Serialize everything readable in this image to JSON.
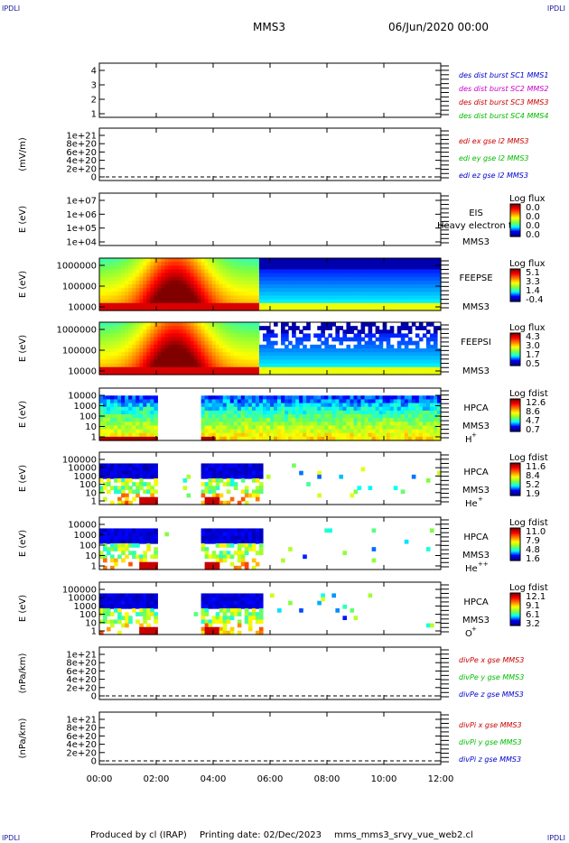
{
  "corner_label": "IPDLI",
  "header": {
    "mission": "MMS3",
    "datetime": "06/Jun/2020 00:00"
  },
  "footer": {
    "produced": "Produced by cl (IRAP)",
    "printing": "Printing date: 02/Dec/2023",
    "script": "mms_mms3_srvy_vue_web2.cl"
  },
  "time_axis": {
    "ticks": [
      "00:00",
      "02:00",
      "04:00",
      "06:00",
      "08:00",
      "10:00",
      "12:00"
    ],
    "start_hours": 0,
    "end_hours": 12
  },
  "colors": {
    "spectrogram_scale": [
      "#000080",
      "#0000ff",
      "#00ffff",
      "#80ff40",
      "#ffff00",
      "#ff8000",
      "#ff0000",
      "#800000"
    ]
  },
  "chart_data": [
    {
      "id": "p1",
      "type": "line",
      "ylabel": "",
      "yticks": [
        "4",
        "3",
        "2",
        "1"
      ],
      "ylim": [
        0.5,
        4.5
      ],
      "legend": [
        {
          "text": "des dist burst SC1 MMS1",
          "color": "#0000cc"
        },
        {
          "text": "des dist burst SC2 MMS2",
          "color": "#cc00cc"
        },
        {
          "text": "des dist burst SC3 MMS3",
          "color": "#cc0000"
        },
        {
          "text": "des dist burst SC4 MMS4",
          "color": "#00bb00"
        }
      ]
    },
    {
      "id": "p2",
      "type": "line",
      "ylabel": "(mV/m)",
      "yticks": [
        "1e+21",
        "8e+20",
        "6e+20",
        "4e+20",
        "2e+20",
        "0"
      ],
      "ylim": [
        0,
        1e+21
      ],
      "zero_line": true,
      "legend": [
        {
          "text": "edi ex gse l2 MMS3",
          "color": "#cc0000"
        },
        {
          "text": "edi ey gse l2 MMS3",
          "color": "#00bb00"
        },
        {
          "text": "edi ez gse l2 MMS3",
          "color": "#0000cc"
        }
      ]
    },
    {
      "id": "p3",
      "type": "heatmap",
      "ylabel": "E (eV)",
      "yticks": [
        "1e+07",
        "1e+06",
        "1e+05",
        "1e+04"
      ],
      "ylim": [
        10000.0,
        10000000.0
      ],
      "log": true,
      "instrument": [
        "EIS",
        "MMS3"
      ],
      "overlay_text": "Heavy electron to",
      "cbar_title": "Log flux",
      "cbar_ticks": [
        "0.0",
        "0.0",
        "0.0",
        "0.0"
      ],
      "data_extent": "none"
    },
    {
      "id": "p4",
      "type": "heatmap",
      "ylabel": "E (eV)",
      "yticks": [
        "1000000",
        "100000",
        "10000"
      ],
      "ylim": [
        10000.0,
        1000000.0
      ],
      "log": true,
      "instrument": [
        "FEEPSE",
        "MMS3"
      ],
      "cbar_title": "Log flux",
      "cbar_ticks": [
        "5.1",
        "3.3",
        "1.4",
        "-0.4"
      ],
      "data_extent": "full"
    },
    {
      "id": "p5",
      "type": "heatmap",
      "ylabel": "E (eV)",
      "yticks": [
        "1000000",
        "100000",
        "10000"
      ],
      "ylim": [
        10000.0,
        1000000.0
      ],
      "log": true,
      "instrument": [
        "FEEPSI",
        "MMS3"
      ],
      "cbar_title": "Log flux",
      "cbar_ticks": [
        "4.3",
        "3.0",
        "1.7",
        "0.5"
      ],
      "data_extent": "full"
    },
    {
      "id": "p6",
      "type": "heatmap",
      "ylabel": "E (eV)",
      "yticks": [
        "10000",
        "1000",
        "100",
        "10",
        "1"
      ],
      "ylim": [
        1,
        30000
      ],
      "log": true,
      "instrument": [
        "HPCA",
        "MMS3"
      ],
      "species": "H",
      "species_sup": "+",
      "cbar_title": "Log fdist",
      "cbar_ticks": [
        "12.6",
        "8.6",
        "4.7",
        "0.7"
      ],
      "data_extent": "gap"
    },
    {
      "id": "p7",
      "type": "heatmap",
      "ylabel": "E (eV)",
      "yticks": [
        "100000",
        "10000",
        "1000",
        "100",
        "10",
        "1"
      ],
      "ylim": [
        1,
        100000
      ],
      "log": true,
      "instrument": [
        "HPCA",
        "MMS3"
      ],
      "species": "He",
      "species_sup": "+",
      "cbar_title": "Log fdist",
      "cbar_ticks": [
        "11.6",
        "8.4",
        "5.2",
        "1.9"
      ],
      "data_extent": "sparse"
    },
    {
      "id": "p8",
      "type": "heatmap",
      "ylabel": "E (eV)",
      "yticks": [
        "10000",
        "1000",
        "100",
        "10",
        "1"
      ],
      "ylim": [
        1,
        30000
      ],
      "log": true,
      "instrument": [
        "HPCA",
        "MMS3"
      ],
      "species": "He",
      "species_sup": "++",
      "cbar_title": "Log fdist",
      "cbar_ticks": [
        "11.0",
        "7.9",
        "4.8",
        "1.6"
      ],
      "data_extent": "sparse"
    },
    {
      "id": "p9",
      "type": "heatmap",
      "ylabel": "E (eV)",
      "yticks": [
        "100000",
        "10000",
        "1000",
        "100",
        "10",
        "1"
      ],
      "ylim": [
        1,
        100000
      ],
      "log": true,
      "instrument": [
        "HPCA",
        "MMS3"
      ],
      "species": "O",
      "species_sup": "+",
      "cbar_title": "Log fdist",
      "cbar_ticks": [
        "12.1",
        "9.1",
        "6.1",
        "3.2"
      ],
      "data_extent": "sparse"
    },
    {
      "id": "p10",
      "type": "line",
      "ylabel": "(nPa/km)",
      "yticks": [
        "1e+21",
        "8e+20",
        "6e+20",
        "4e+20",
        "2e+20",
        "0"
      ],
      "ylim": [
        0,
        1e+21
      ],
      "zero_line": true,
      "legend": [
        {
          "text": "divPe x gse MMS3",
          "color": "#cc0000"
        },
        {
          "text": "divPe y gse MMS3",
          "color": "#00bb00"
        },
        {
          "text": "divPe z gse MMS3",
          "color": "#0000cc"
        }
      ]
    },
    {
      "id": "p11",
      "type": "line",
      "ylabel": "(nPa/km)",
      "yticks": [
        "1e+21",
        "8e+20",
        "6e+20",
        "4e+20",
        "2e+20",
        "0"
      ],
      "ylim": [
        0,
        1e+21
      ],
      "zero_line": true,
      "legend": [
        {
          "text": "divPi x gse MMS3",
          "color": "#cc0000"
        },
        {
          "text": "divPi y gse MMS3",
          "color": "#00bb00"
        },
        {
          "text": "divPi z gse MMS3",
          "color": "#0000cc"
        }
      ]
    }
  ]
}
